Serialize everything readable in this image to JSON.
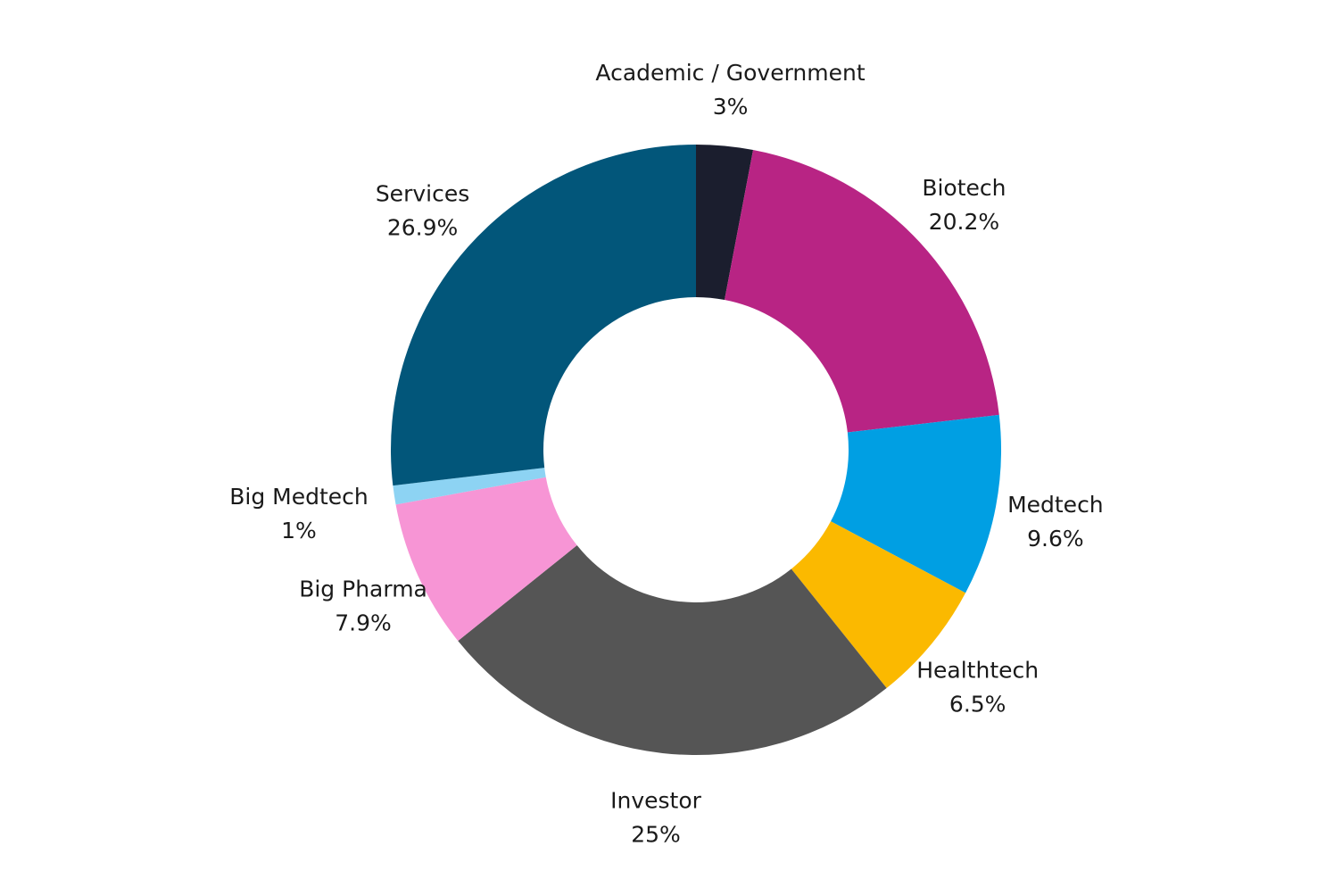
{
  "chart_data": {
    "type": "pie",
    "donut": true,
    "title": "",
    "start": "top",
    "direction": "clockwise",
    "slices": [
      {
        "label": "Academic / Government",
        "value": 3,
        "value_label": "3%",
        "color": "#1b1e2e"
      },
      {
        "label": "Biotech",
        "value": 20.2,
        "value_label": "20.2%",
        "color": "#b82484"
      },
      {
        "label": "Medtech",
        "value": 9.6,
        "value_label": "9.6%",
        "color": "#009fe3"
      },
      {
        "label": "Healthtech",
        "value": 6.5,
        "value_label": "6.5%",
        "color": "#fbb900"
      },
      {
        "label": "Investor",
        "value": 25,
        "value_label": "25%",
        "color": "#555555"
      },
      {
        "label": "Big Pharma",
        "value": 7.9,
        "value_label": "7.9%",
        "color": "#f795d5"
      },
      {
        "label": "Big Medtech",
        "value": 1,
        "value_label": "1%",
        "color": "#8dd3f3"
      },
      {
        "label": "Services",
        "value": 26.9,
        "value_label": "26.9%",
        "color": "#02567a"
      }
    ]
  }
}
